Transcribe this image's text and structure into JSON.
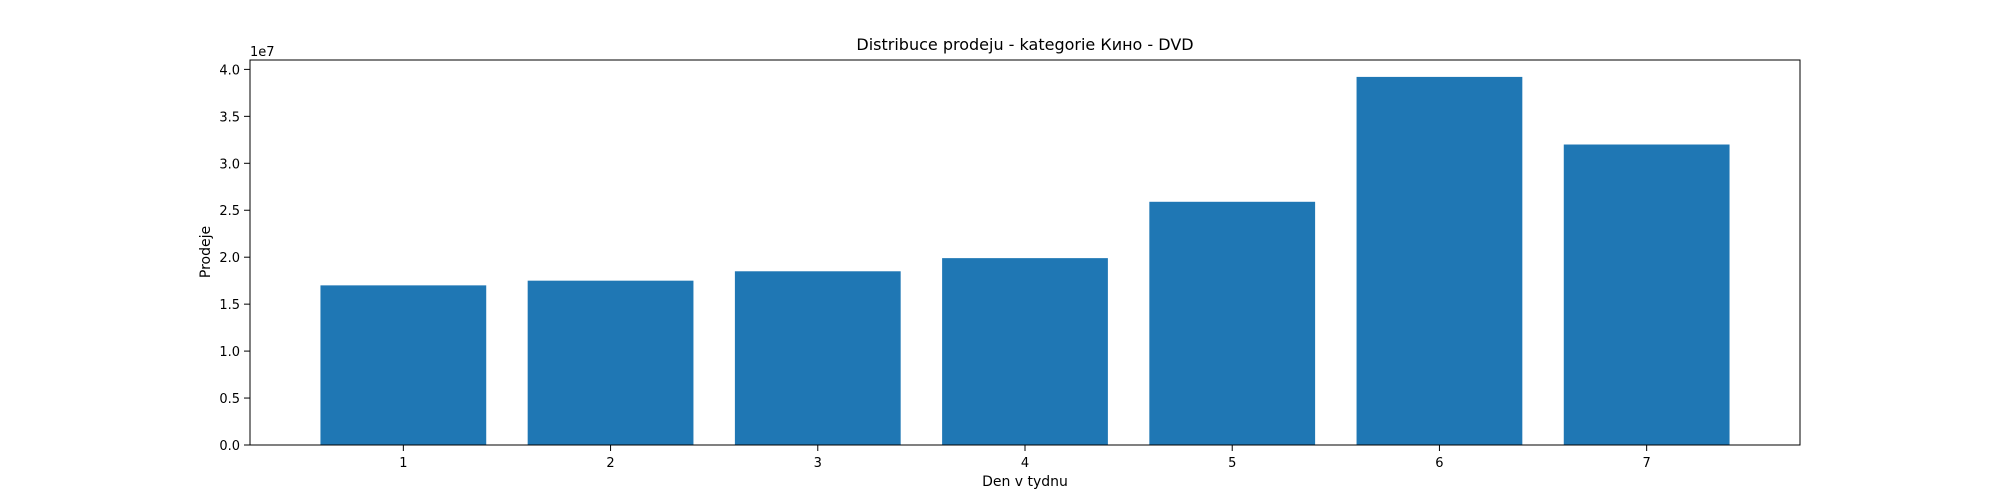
{
  "chart_data": {
    "type": "bar",
    "title": "Distribuce prodeju  - kategorie Кино - DVD",
    "xlabel": "Den v tydnu",
    "ylabel": "Prodeje",
    "y_multiplier_label": "1e7",
    "categories": [
      "1",
      "2",
      "3",
      "4",
      "5",
      "6",
      "7"
    ],
    "values": [
      17000000,
      17500000,
      18500000,
      19900000,
      25900000,
      39200000,
      32000000
    ],
    "ylim": [
      0,
      41000000
    ],
    "yticks": [
      0,
      5000000,
      10000000,
      15000000,
      20000000,
      25000000,
      30000000,
      35000000,
      40000000
    ],
    "ytick_labels": [
      "0.0",
      "0.5",
      "1.0",
      "1.5",
      "2.0",
      "2.5",
      "3.0",
      "3.5",
      "4.0"
    ],
    "grid": false,
    "colors": {
      "bar": "#1f77b4",
      "axes": "#000000"
    }
  }
}
